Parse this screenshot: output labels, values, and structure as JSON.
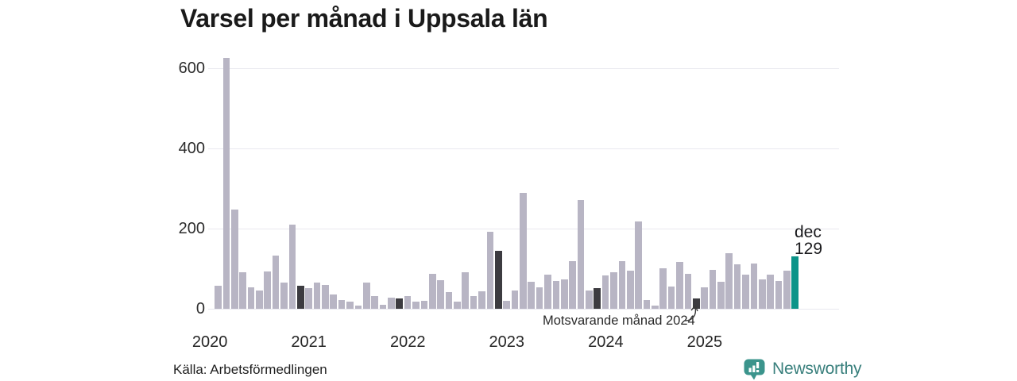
{
  "title": "Varsel per månad i Uppsala län",
  "source": "Källa: Arbetsförmedlingen",
  "brand": {
    "name": "Newsworthy"
  },
  "current_label": {
    "month": "dec",
    "value": "129"
  },
  "annotation": {
    "label": "Motsvarande månad 2024"
  },
  "colors": {
    "bar_default": "#b8b5c4",
    "bar_dark": "#3c3b40",
    "bar_current": "#0c9489",
    "gridline": "#e9e8ef",
    "brand_teal": "#3b948c"
  },
  "chart_data": {
    "type": "bar",
    "title": "Varsel per månad i Uppsala län",
    "ylabel": "",
    "xlabel": "",
    "ylim": [
      0,
      650
    ],
    "yticks": [
      0,
      200,
      400,
      600
    ],
    "grid": "horizontal",
    "x_year_labels": [
      "2020",
      "2021",
      "2022",
      "2023",
      "2024",
      "2025"
    ],
    "x": [
      "2020-01",
      "2020-02",
      "2020-03",
      "2020-04",
      "2020-05",
      "2020-06",
      "2020-07",
      "2020-08",
      "2020-09",
      "2020-10",
      "2020-11",
      "2020-12",
      "2021-01",
      "2021-02",
      "2021-03",
      "2021-04",
      "2021-05",
      "2021-06",
      "2021-07",
      "2021-08",
      "2021-09",
      "2021-10",
      "2021-11",
      "2021-12",
      "2022-01",
      "2022-02",
      "2022-03",
      "2022-04",
      "2022-05",
      "2022-06",
      "2022-07",
      "2022-08",
      "2022-09",
      "2022-10",
      "2022-11",
      "2022-12",
      "2023-01",
      "2023-02",
      "2023-03",
      "2023-04",
      "2023-05",
      "2023-06",
      "2023-07",
      "2023-08",
      "2023-09",
      "2023-10",
      "2023-11",
      "2023-12",
      "2024-01",
      "2024-02",
      "2024-03",
      "2024-04",
      "2024-05",
      "2024-06",
      "2024-07",
      "2024-08",
      "2024-09",
      "2024-10",
      "2024-11",
      "2024-12",
      "2025-01",
      "2025-02",
      "2025-03",
      "2025-04",
      "2025-05",
      "2025-06",
      "2025-07",
      "2025-08",
      "2025-09",
      "2025-10",
      "2025-11",
      "2025-12"
    ],
    "values": [
      0,
      57,
      626,
      247,
      90,
      52,
      44,
      93,
      131,
      65,
      209,
      57,
      50,
      65,
      59,
      34,
      20,
      16,
      7,
      65,
      30,
      9,
      26,
      25,
      30,
      17,
      18,
      86,
      71,
      41,
      16,
      90,
      31,
      42,
      191,
      144,
      18,
      44,
      288,
      67,
      52,
      84,
      68,
      73,
      118,
      270,
      44,
      51,
      82,
      91,
      119,
      95,
      218,
      21,
      7,
      100,
      54,
      117,
      87,
      25,
      52,
      97,
      66,
      137,
      110,
      84,
      112,
      72,
      84,
      69,
      95,
      129
    ],
    "dark_december_indices": [
      11,
      23,
      35,
      47,
      59
    ],
    "current_index": 71,
    "current_point_label": "dec 129",
    "annotation_target": "2024-12",
    "legend": "none"
  }
}
